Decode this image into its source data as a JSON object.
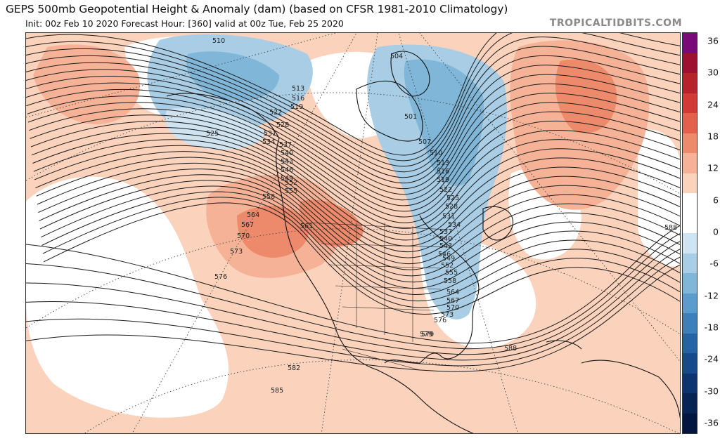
{
  "header": {
    "title": "GEPS 500mb Geopotential Height & Anomaly (dam) (based on CFSR 1981-2010 Climatology)",
    "subtitle": "Init: 00z Feb 10 2020   Forecast Hour: [360]   valid at 00z Tue, Feb 25 2020",
    "watermark": "TROPICALTIDBITS.COM"
  },
  "colorbar": {
    "labels": [
      "36",
      "30",
      "24",
      "18",
      "12",
      "6",
      "0",
      "-6",
      "-12",
      "-18",
      "-24",
      "-30",
      "-36"
    ],
    "colors": [
      "#7a0a78",
      "#a01030",
      "#b8222c",
      "#d33a36",
      "#e4604c",
      "#ee8a6c",
      "#f6b296",
      "#fbd2bc",
      "#ffffff",
      "#ffffff",
      "#cfe4f0",
      "#a8cde4",
      "#80b6d8",
      "#5a9ccb",
      "#3b7fbb",
      "#2563a4",
      "#174a8a",
      "#0e3470",
      "#082457",
      "#041640"
    ]
  },
  "contours": {
    "labels": [
      "510",
      "513",
      "516",
      "519",
      "522",
      "525",
      "528",
      "531",
      "534",
      "537",
      "540",
      "543",
      "546",
      "549",
      "552",
      "555",
      "558",
      "561",
      "564",
      "567",
      "570",
      "573",
      "576",
      "579",
      "582",
      "585",
      "588",
      "504",
      "501",
      "507",
      "510",
      "513",
      "516",
      "519",
      "522",
      "525",
      "528",
      "531",
      "534",
      "537",
      "540",
      "543",
      "546",
      "549",
      "552",
      "555",
      "558",
      "564",
      "567",
      "570",
      "573",
      "576",
      "579",
      "588"
    ]
  }
}
